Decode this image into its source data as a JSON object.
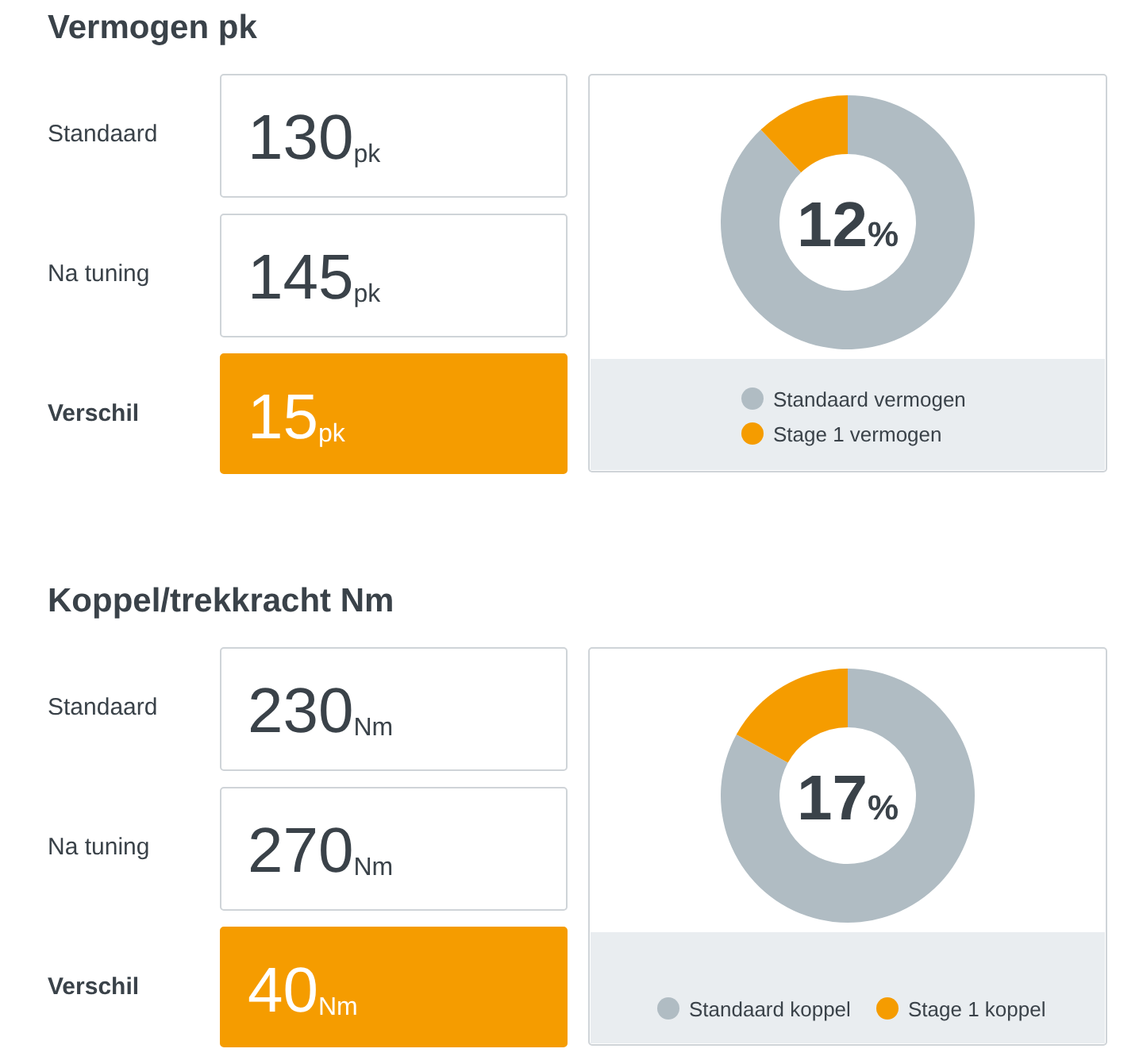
{
  "chart_data": [
    {
      "type": "other",
      "title": "Vermogen pk",
      "categories": [
        "Standaard",
        "Na tuning",
        "Verschil"
      ],
      "values": [
        130,
        145,
        15
      ],
      "value_labels": [
        "130$_{pk}$",
        "145$_{pk}$",
        "15$_{pk}$"
      ]
    },
    {
      "type": "donut",
      "categories": [
        "Standaard vermogen",
        "Stage 1 vermogen"
      ],
      "values": [
        88,
        12
      ],
      "colors": [
        "#b0bcc3",
        "#f59c00"
      ],
      "legend": "bottom",
      "annotations": [
        "12%"
      ]
    },
    {
      "type": "other",
      "title": "Koppel/trekkracht Nm",
      "categories": [
        "Standaard",
        "Na tuning",
        "Verschil"
      ],
      "values": [
        230,
        270,
        40
      ],
      "value_labels": [
        "230$_{Nm}$",
        "270$_{Nm}$",
        "40$_{Nm}$"
      ]
    },
    {
      "type": "donut",
      "categories": [
        "Standaard koppel",
        "Stage 1 koppel"
      ],
      "values": [
        83,
        17
      ],
      "colors": [
        "#b0bcc3",
        "#f59c00"
      ],
      "legend": "bottom",
      "annotations": [
        "17%"
      ]
    }
  ]
}
